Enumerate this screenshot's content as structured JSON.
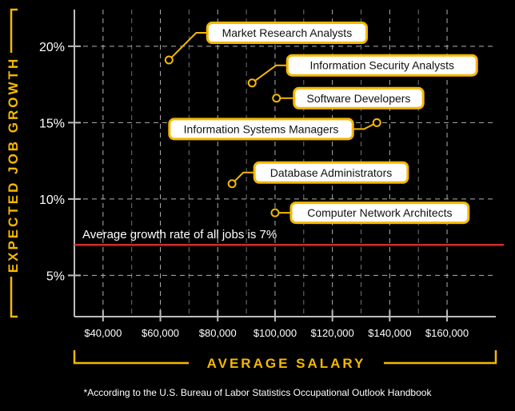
{
  "chart_data": {
    "type": "scatter",
    "ylabel": "EXPECTED JOB GROWTH",
    "xlabel": "AVERAGE SALARY",
    "x_ticks": [
      {
        "value": 40000,
        "label": "$40,000"
      },
      {
        "value": 60000,
        "label": "$60,000"
      },
      {
        "value": 80000,
        "label": "$80,000"
      },
      {
        "value": 100000,
        "label": "$100,000"
      },
      {
        "value": 120000,
        "label": "$120,000"
      },
      {
        "value": 140000,
        "label": "$140,000"
      },
      {
        "value": 160000,
        "label": "$160,000"
      }
    ],
    "y_ticks": [
      {
        "value": 5,
        "label": "5%"
      },
      {
        "value": 10,
        "label": "10%"
      },
      {
        "value": 15,
        "label": "15%"
      },
      {
        "value": 20,
        "label": "20%"
      }
    ],
    "xlim": [
      30000,
      177000
    ],
    "ylim": [
      2.3,
      22.4
    ],
    "grid": true,
    "points": [
      {
        "label": "Market Research Analysts",
        "x": 63000,
        "y": 19.1
      },
      {
        "label": "Information Security Analysts",
        "x": 92000,
        "y": 17.6
      },
      {
        "label": "Software Developers",
        "x": 100500,
        "y": 16.6
      },
      {
        "label": "Information Systems Managers",
        "x": 135500,
        "y": 15.0
      },
      {
        "label": "Database Administrators",
        "x": 85000,
        "y": 11.0
      },
      {
        "label": "Computer Network Architects",
        "x": 100000,
        "y": 9.1
      }
    ],
    "reference_line": {
      "value": 7,
      "label": "Average growth rate of all jobs is 7%",
      "color": "#d42a2a"
    },
    "colors": {
      "accent": "#f5b800",
      "grid": "#cfcfcf",
      "background": "#000000"
    }
  },
  "footnote": "*According to the U.S. Bureau of Labor Statistics Occupational Outlook Handbook"
}
